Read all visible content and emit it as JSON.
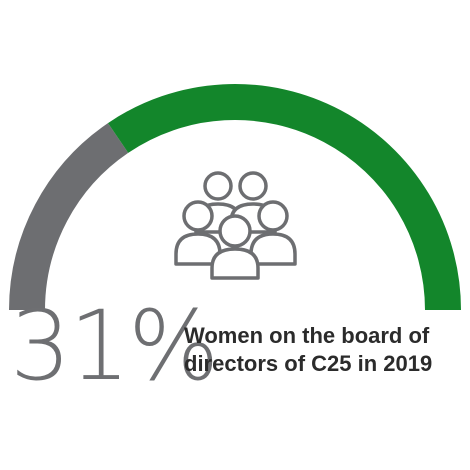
{
  "chart_data": {
    "type": "gauge",
    "value_percent": 31,
    "remainder_percent": 69,
    "value_label": "31%",
    "caption_lines": [
      "Women on the board of",
      "directors of C25 in 2019"
    ]
  },
  "colors": {
    "value_segment": "#6d6e71",
    "remainder_segment": "#13862b",
    "icon_stroke": "#6d6e71",
    "percent_text": "#6e6f72",
    "caption_text": "#2b2b2b"
  },
  "icon": "people-group-icon"
}
